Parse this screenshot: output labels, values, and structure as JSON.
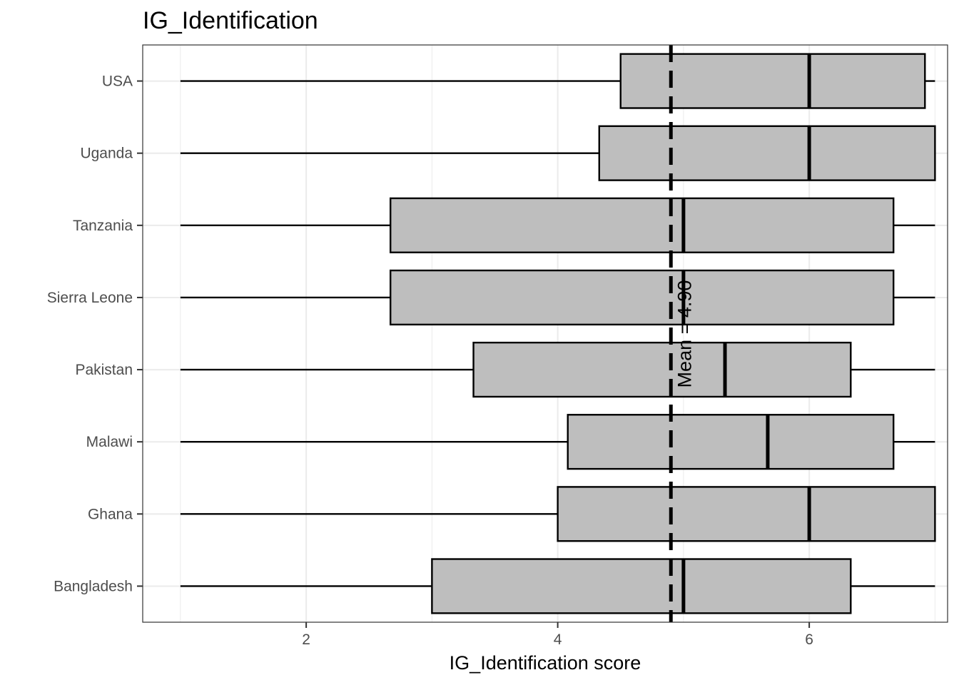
{
  "chart_data": {
    "type": "boxplot",
    "title": "IG_Identification",
    "xlabel": "IG_Identification score",
    "ylabel": "",
    "xlim": [
      0.7,
      7.1
    ],
    "x_ticks": [
      2,
      4,
      6
    ],
    "grid": true,
    "categories": [
      "USA",
      "Uganda",
      "Tanzania",
      "Sierra Leone",
      "Pakistan",
      "Malawi",
      "Ghana",
      "Bangladesh"
    ],
    "boxes": [
      {
        "category": "USA",
        "min": 1,
        "q1": 4.5,
        "median": 6,
        "q3": 6.92,
        "max": 7
      },
      {
        "category": "Uganda",
        "min": 1,
        "q1": 4.33,
        "median": 6,
        "q3": 7,
        "max": 7
      },
      {
        "category": "Tanzania",
        "min": 1,
        "q1": 2.67,
        "median": 5,
        "q3": 6.67,
        "max": 7
      },
      {
        "category": "Sierra Leone",
        "min": 1,
        "q1": 2.67,
        "median": 5,
        "q3": 6.67,
        "max": 7
      },
      {
        "category": "Pakistan",
        "min": 1,
        "q1": 3.33,
        "median": 5.33,
        "q3": 6.33,
        "max": 7
      },
      {
        "category": "Malawi",
        "min": 1,
        "q1": 4.08,
        "median": 5.67,
        "q3": 6.67,
        "max": 7
      },
      {
        "category": "Ghana",
        "min": 1,
        "q1": 4,
        "median": 6,
        "q3": 7,
        "max": 7
      },
      {
        "category": "Bangladesh",
        "min": 1,
        "q1": 3,
        "median": 5,
        "q3": 6.33,
        "max": 7
      }
    ],
    "mean_line": {
      "value": 4.9,
      "label": "Mean = 4.90"
    },
    "colors": {
      "box_fill": "#bebebe",
      "stroke": "#000000",
      "grid": "#ebebeb",
      "tick_text": "#4d4d4d"
    }
  }
}
